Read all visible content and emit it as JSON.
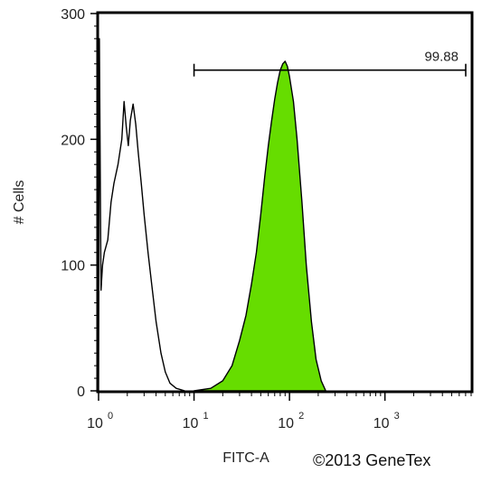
{
  "chart_data": {
    "type": "area",
    "title": "",
    "xlabel": "FITC-A",
    "ylabel": "# Cells",
    "x_scale": "log",
    "xlim": [
      1,
      8000
    ],
    "ylim": [
      0,
      300
    ],
    "grid": false,
    "x_ticks": [
      {
        "value": 1,
        "base": "10",
        "exp": "0"
      },
      {
        "value": 10,
        "base": "10",
        "exp": "1"
      },
      {
        "value": 100,
        "base": "10",
        "exp": "2"
      },
      {
        "value": 1000,
        "base": "10",
        "exp": "3"
      }
    ],
    "y_ticks": [
      0,
      100,
      200,
      300
    ],
    "series": [
      {
        "fill": "none",
        "stroke": "#000000",
        "points": [
          [
            1.0,
            0
          ],
          [
            1.02,
            280
          ],
          [
            1.06,
            80
          ],
          [
            1.1,
            100
          ],
          [
            1.15,
            110
          ],
          [
            1.25,
            120
          ],
          [
            1.35,
            150
          ],
          [
            1.45,
            165
          ],
          [
            1.6,
            180
          ],
          [
            1.75,
            200
          ],
          [
            1.85,
            230
          ],
          [
            1.95,
            210
          ],
          [
            2.05,
            195
          ],
          [
            2.15,
            215
          ],
          [
            2.3,
            228
          ],
          [
            2.45,
            212
          ],
          [
            2.6,
            190
          ],
          [
            2.8,
            165
          ],
          [
            3.0,
            140
          ],
          [
            3.3,
            110
          ],
          [
            3.6,
            85
          ],
          [
            4.0,
            55
          ],
          [
            4.5,
            30
          ],
          [
            5.0,
            15
          ],
          [
            5.6,
            6
          ],
          [
            6.5,
            2
          ],
          [
            8.0,
            0
          ]
        ]
      },
      {
        "fill": "#66dd00",
        "stroke": "#000000",
        "points": [
          [
            10,
            0
          ],
          [
            15,
            2
          ],
          [
            20,
            8
          ],
          [
            25,
            20
          ],
          [
            30,
            40
          ],
          [
            35,
            60
          ],
          [
            40,
            85
          ],
          [
            45,
            110
          ],
          [
            50,
            140
          ],
          [
            55,
            170
          ],
          [
            60,
            195
          ],
          [
            65,
            215
          ],
          [
            70,
            232
          ],
          [
            75,
            245
          ],
          [
            80,
            255
          ],
          [
            85,
            260
          ],
          [
            90,
            262
          ],
          [
            95,
            258
          ],
          [
            100,
            250
          ],
          [
            110,
            230
          ],
          [
            120,
            200
          ],
          [
            135,
            150
          ],
          [
            150,
            100
          ],
          [
            170,
            55
          ],
          [
            190,
            25
          ],
          [
            215,
            8
          ],
          [
            240,
            0
          ]
        ]
      }
    ],
    "annotations": [
      {
        "label": "99.88",
        "x_start": 10,
        "x_end": 8000,
        "y": 255
      }
    ]
  },
  "copyright": "©2013 GeneTex"
}
